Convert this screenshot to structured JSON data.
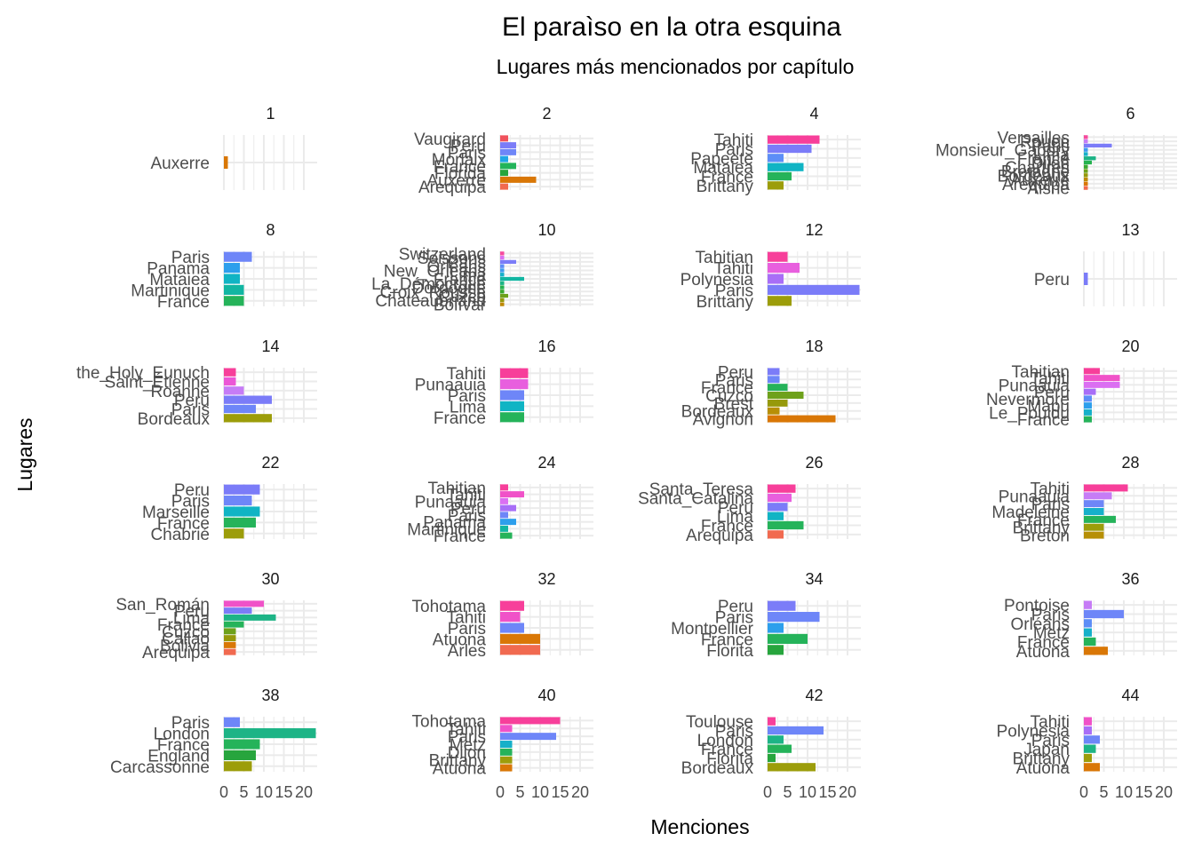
{
  "chart_data": {
    "type": "bar",
    "orientation": "horizontal",
    "title": "El paraìso en la otra esquina",
    "subtitle": "Lugares más mencionados por capítulo",
    "xlabel": "Menciones",
    "ylabel": "Lugares",
    "xlim": [
      0,
      22
    ],
    "x_ticks": [
      0,
      5,
      10,
      15,
      20
    ],
    "grid": true,
    "legend": "none",
    "facets": [
      {
        "label": "1",
        "bars": [
          {
            "name": "Auxerre",
            "value": 1,
            "color": "#D97706"
          }
        ]
      },
      {
        "label": "2",
        "bars": [
          {
            "name": "Vaugirard",
            "value": 2,
            "color": "#F0525C"
          },
          {
            "name": "Peru",
            "value": 4,
            "color": "#7B7CF8"
          },
          {
            "name": "Paris",
            "value": 4,
            "color": "#6E86F8"
          },
          {
            "name": "Morlaix",
            "value": 2,
            "color": "#1FA7E6"
          },
          {
            "name": "France",
            "value": 4,
            "color": "#22B45A"
          },
          {
            "name": "Florida",
            "value": 2,
            "color": "#27A53D"
          },
          {
            "name": "Auxerre",
            "value": 9,
            "color": "#D97706"
          },
          {
            "name": "Arequipa",
            "value": 2,
            "color": "#F16A50"
          }
        ]
      },
      {
        "label": "4",
        "bars": [
          {
            "name": "Tahiti",
            "value": 13,
            "color": "#F73F9A"
          },
          {
            "name": "Paris",
            "value": 11,
            "color": "#7B7CF8"
          },
          {
            "name": "Papeete",
            "value": 4,
            "color": "#5D8EF7"
          },
          {
            "name": "Mataiea",
            "value": 9,
            "color": "#10B4C4"
          },
          {
            "name": "France",
            "value": 6,
            "color": "#25B35A"
          },
          {
            "name": "Brittany",
            "value": 4,
            "color": "#9C9D0A"
          }
        ]
      },
      {
        "label": "6",
        "bars": [
          {
            "name": "Versailles",
            "value": 1,
            "color": "#F64B9E"
          },
          {
            "name": "Rouen",
            "value": 1,
            "color": "#C67CF6"
          },
          {
            "name": "Paris",
            "value": 7,
            "color": "#7B7CF8"
          },
          {
            "name": "Monsieur_Gabory",
            "value": 1,
            "color": "#3E9BEE"
          },
          {
            "name": "Lima",
            "value": 1,
            "color": "#16B0C9"
          },
          {
            "name": "France",
            "value": 3,
            "color": "#1DB486"
          },
          {
            "name": "Dijon",
            "value": 2,
            "color": "#26B24F"
          },
          {
            "name": "Chartres",
            "value": 1,
            "color": "#3AA82E"
          },
          {
            "name": "Bretagne",
            "value": 1,
            "color": "#6EA11B"
          },
          {
            "name": "Bordeaux",
            "value": 1,
            "color": "#96990B"
          },
          {
            "name": "Auxerre",
            "value": 1,
            "color": "#BE8A06"
          },
          {
            "name": "Arequipa",
            "value": 1,
            "color": "#D97706"
          },
          {
            "name": "Aisne",
            "value": 1,
            "color": "#F26B4E"
          }
        ]
      },
      {
        "label": "8",
        "bars": [
          {
            "name": "Paris",
            "value": 7,
            "color": "#6E86F8"
          },
          {
            "name": "Panama",
            "value": 4,
            "color": "#2D9FEC"
          },
          {
            "name": "Mataiea",
            "value": 4,
            "color": "#10B4C4"
          },
          {
            "name": "Martinique",
            "value": 5,
            "color": "#12B6A2"
          },
          {
            "name": "France",
            "value": 5,
            "color": "#25B35A"
          }
        ]
      },
      {
        "label": "10",
        "bars": [
          {
            "name": "Switzerland",
            "value": 1,
            "color": "#F64B9E"
          },
          {
            "name": "Soissons",
            "value": 1,
            "color": "#DB6FF2"
          },
          {
            "name": "Paris",
            "value": 4,
            "color": "#7B7CF8"
          },
          {
            "name": "Orléans",
            "value": 1,
            "color": "#5D8EF7"
          },
          {
            "name": "New_Orleans",
            "value": 1,
            "color": "#3E9BEE"
          },
          {
            "name": "Lima",
            "value": 1,
            "color": "#16B0C9"
          },
          {
            "name": "France",
            "value": 6,
            "color": "#12B6A2"
          },
          {
            "name": "La_Démocratie",
            "value": 1,
            "color": "#1DB486"
          },
          {
            "name": "Dordogne",
            "value": 1,
            "color": "#26B24F"
          },
          {
            "name": "Croix_Rousse",
            "value": 1,
            "color": "#3AA82E"
          },
          {
            "name": "Cuzco",
            "value": 2,
            "color": "#6EA11B"
          },
          {
            "name": "Chateaubriand",
            "value": 1,
            "color": "#96990B"
          },
          {
            "name": "Bolívar",
            "value": 1,
            "color": "#BE8A06"
          }
        ]
      },
      {
        "label": "12",
        "bars": [
          {
            "name": "Tahitian",
            "value": 5,
            "color": "#F73F9A"
          },
          {
            "name": "Tahiti",
            "value": 8,
            "color": "#E85FDE"
          },
          {
            "name": "Polynesia",
            "value": 4,
            "color": "#A86EF7"
          },
          {
            "name": "Paris",
            "value": 23,
            "color": "#7B7CF8"
          },
          {
            "name": "Brittany",
            "value": 6,
            "color": "#9C9D0A"
          }
        ]
      },
      {
        "label": "13",
        "bars": [
          {
            "name": "Peru",
            "value": 1,
            "color": "#7B7CF8"
          }
        ]
      },
      {
        "label": "14",
        "bars": [
          {
            "name": "the_Holy_Eunuch",
            "value": 3,
            "color": "#F73F9A"
          },
          {
            "name": "Saint_Étienne",
            "value": 3,
            "color": "#EC56D6"
          },
          {
            "name": "Roanne",
            "value": 5,
            "color": "#C67CF6"
          },
          {
            "name": "Peru",
            "value": 12,
            "color": "#7B7CF8"
          },
          {
            "name": "Paris",
            "value": 8,
            "color": "#6E86F8"
          },
          {
            "name": "Bordeaux",
            "value": 12,
            "color": "#9C9D0A"
          }
        ]
      },
      {
        "label": "16",
        "bars": [
          {
            "name": "Tahiti",
            "value": 7,
            "color": "#F73F9A"
          },
          {
            "name": "Punaauia",
            "value": 7,
            "color": "#E85FDE"
          },
          {
            "name": "Paris",
            "value": 6,
            "color": "#6E86F8"
          },
          {
            "name": "Lima",
            "value": 6,
            "color": "#10B4C4"
          },
          {
            "name": "France",
            "value": 6,
            "color": "#25B35A"
          }
        ]
      },
      {
        "label": "18",
        "bars": [
          {
            "name": "Peru",
            "value": 3,
            "color": "#7B7CF8"
          },
          {
            "name": "Paris",
            "value": 3,
            "color": "#6E86F8"
          },
          {
            "name": "France",
            "value": 5,
            "color": "#25B35A"
          },
          {
            "name": "Cuzco",
            "value": 9,
            "color": "#6EA11B"
          },
          {
            "name": "Brest",
            "value": 5,
            "color": "#96990B"
          },
          {
            "name": "Bordeaux",
            "value": 3,
            "color": "#B78F06"
          },
          {
            "name": "Avignon",
            "value": 17,
            "color": "#D97706"
          }
        ]
      },
      {
        "label": "20",
        "bars": [
          {
            "name": "Tahitian",
            "value": 4,
            "color": "#F73F9A"
          },
          {
            "name": "Tahiti",
            "value": 9,
            "color": "#F052C8"
          },
          {
            "name": "Punaauia",
            "value": 9,
            "color": "#DB6FF2"
          },
          {
            "name": "Peru",
            "value": 3,
            "color": "#A86EF7"
          },
          {
            "name": "Nevermore",
            "value": 2,
            "color": "#5D8EF7"
          },
          {
            "name": "Mapu",
            "value": 2,
            "color": "#2D9FEC"
          },
          {
            "name": "Le_Pouldu",
            "value": 2,
            "color": "#16B0C9"
          },
          {
            "name": "France",
            "value": 2,
            "color": "#25B35A"
          }
        ]
      },
      {
        "label": "22",
        "bars": [
          {
            "name": "Peru",
            "value": 9,
            "color": "#7B7CF8"
          },
          {
            "name": "Paris",
            "value": 7,
            "color": "#6E86F8"
          },
          {
            "name": "Marseille",
            "value": 9,
            "color": "#10B4C4"
          },
          {
            "name": "France",
            "value": 8,
            "color": "#25B35A"
          },
          {
            "name": "Chabrié",
            "value": 5,
            "color": "#9C9D0A"
          }
        ]
      },
      {
        "label": "24",
        "bars": [
          {
            "name": "Tahitian",
            "value": 2,
            "color": "#F73F9A"
          },
          {
            "name": "Tahiti",
            "value": 6,
            "color": "#F052C8"
          },
          {
            "name": "Punaauia",
            "value": 2,
            "color": "#DB6FF2"
          },
          {
            "name": "Peru",
            "value": 4,
            "color": "#A86EF7"
          },
          {
            "name": "Paris",
            "value": 2,
            "color": "#6E86F8"
          },
          {
            "name": "Panama",
            "value": 4,
            "color": "#2D9FEC"
          },
          {
            "name": "Martinique",
            "value": 2,
            "color": "#12B6A2"
          },
          {
            "name": "France",
            "value": 3,
            "color": "#25B35A"
          }
        ]
      },
      {
        "label": "26",
        "bars": [
          {
            "name": "Santa_Teresa",
            "value": 7,
            "color": "#F73F9A"
          },
          {
            "name": "Santa_Catalina",
            "value": 6,
            "color": "#E85FDE"
          },
          {
            "name": "Peru",
            "value": 5,
            "color": "#7B7CF8"
          },
          {
            "name": "Lima",
            "value": 4,
            "color": "#10B4C4"
          },
          {
            "name": "France",
            "value": 9,
            "color": "#25B35A"
          },
          {
            "name": "Arequipa",
            "value": 4,
            "color": "#F16A50"
          }
        ]
      },
      {
        "label": "28",
        "bars": [
          {
            "name": "Tahiti",
            "value": 11,
            "color": "#F73F9A"
          },
          {
            "name": "Punaauia",
            "value": 7,
            "color": "#C67CF6"
          },
          {
            "name": "Paris",
            "value": 5,
            "color": "#6E86F8"
          },
          {
            "name": "Madeleine",
            "value": 5,
            "color": "#16B0C9"
          },
          {
            "name": "France",
            "value": 8,
            "color": "#25B35A"
          },
          {
            "name": "Brittany",
            "value": 5,
            "color": "#9C9D0A"
          },
          {
            "name": "Breton",
            "value": 5,
            "color": "#B78F06"
          }
        ]
      },
      {
        "label": "30",
        "bars": [
          {
            "name": "San_Román",
            "value": 10,
            "color": "#F052C8"
          },
          {
            "name": "Peru",
            "value": 7,
            "color": "#7B7CF8"
          },
          {
            "name": "Lima",
            "value": 13,
            "color": "#1DB486"
          },
          {
            "name": "France",
            "value": 5,
            "color": "#25B35A"
          },
          {
            "name": "Cuzco",
            "value": 3,
            "color": "#6EA11B"
          },
          {
            "name": "Callao",
            "value": 3,
            "color": "#96990B"
          },
          {
            "name": "Bolivia",
            "value": 3,
            "color": "#D97706"
          },
          {
            "name": "Arequipa",
            "value": 3,
            "color": "#F16A50"
          }
        ]
      },
      {
        "label": "32",
        "bars": [
          {
            "name": "Tohotama",
            "value": 6,
            "color": "#F73F9A"
          },
          {
            "name": "Tahiti",
            "value": 5,
            "color": "#F052C8"
          },
          {
            "name": "Paris",
            "value": 6,
            "color": "#6E86F8"
          },
          {
            "name": "Atuona",
            "value": 10,
            "color": "#D97706"
          },
          {
            "name": "Arles",
            "value": 10,
            "color": "#F16A50"
          }
        ]
      },
      {
        "label": "34",
        "bars": [
          {
            "name": "Peru",
            "value": 7,
            "color": "#7B7CF8"
          },
          {
            "name": "Paris",
            "value": 13,
            "color": "#6E86F8"
          },
          {
            "name": "Montpellier",
            "value": 4,
            "color": "#2D9FEC"
          },
          {
            "name": "France",
            "value": 10,
            "color": "#25B35A"
          },
          {
            "name": "Florita",
            "value": 4,
            "color": "#27A53D"
          }
        ]
      },
      {
        "label": "36",
        "bars": [
          {
            "name": "Pontoise",
            "value": 2,
            "color": "#C67CF6"
          },
          {
            "name": "Paris",
            "value": 10,
            "color": "#6E86F8"
          },
          {
            "name": "Orléans",
            "value": 2,
            "color": "#5D8EF7"
          },
          {
            "name": "Metz",
            "value": 2,
            "color": "#16B0C9"
          },
          {
            "name": "France",
            "value": 3,
            "color": "#25B35A"
          },
          {
            "name": "Atuona",
            "value": 6,
            "color": "#D97706"
          }
        ]
      },
      {
        "label": "38",
        "bars": [
          {
            "name": "Paris",
            "value": 4,
            "color": "#6E86F8"
          },
          {
            "name": "London",
            "value": 23,
            "color": "#1DB486"
          },
          {
            "name": "France",
            "value": 9,
            "color": "#25B35A"
          },
          {
            "name": "England",
            "value": 8,
            "color": "#27A53D"
          },
          {
            "name": "Carcassonne",
            "value": 7,
            "color": "#9C9D0A"
          }
        ]
      },
      {
        "label": "40",
        "bars": [
          {
            "name": "Tohotama",
            "value": 15,
            "color": "#F73F9A"
          },
          {
            "name": "Tahiti",
            "value": 3,
            "color": "#F052C8"
          },
          {
            "name": "Paris",
            "value": 14,
            "color": "#6E86F8"
          },
          {
            "name": "Metz",
            "value": 3,
            "color": "#16B0C9"
          },
          {
            "name": "Dijon",
            "value": 3,
            "color": "#25B35A"
          },
          {
            "name": "Brittany",
            "value": 3,
            "color": "#9C9D0A"
          },
          {
            "name": "Atuona",
            "value": 3,
            "color": "#D97706"
          }
        ]
      },
      {
        "label": "42",
        "bars": [
          {
            "name": "Toulouse",
            "value": 2,
            "color": "#F73F9A"
          },
          {
            "name": "Paris",
            "value": 14,
            "color": "#6E86F8"
          },
          {
            "name": "London",
            "value": 4,
            "color": "#1DB486"
          },
          {
            "name": "France",
            "value": 6,
            "color": "#25B35A"
          },
          {
            "name": "Florita",
            "value": 2,
            "color": "#27A53D"
          },
          {
            "name": "Bordeaux",
            "value": 12,
            "color": "#9C9D0A"
          }
        ]
      },
      {
        "label": "44",
        "bars": [
          {
            "name": "Tahiti",
            "value": 2,
            "color": "#F052C8"
          },
          {
            "name": "Polynesia",
            "value": 2,
            "color": "#A86EF7"
          },
          {
            "name": "Paris",
            "value": 4,
            "color": "#6E86F8"
          },
          {
            "name": "Japan",
            "value": 3,
            "color": "#1DB486"
          },
          {
            "name": "Brittany",
            "value": 2,
            "color": "#9C9D0A"
          },
          {
            "name": "Atuona",
            "value": 4,
            "color": "#D97706"
          }
        ]
      }
    ]
  }
}
